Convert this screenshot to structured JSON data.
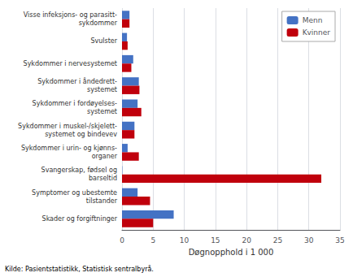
{
  "chart_data": {
    "type": "bar",
    "orientation": "horizontal",
    "categories": [
      "Visse infeksjons- og parasitt-\nsykdommer",
      "Svulster",
      "Sykdommer i nervesystemet",
      "Sykdommer i åndedrett-\nsystemet",
      "Sykdommer i fordøyelses-\nsystemet",
      "Sykdommer i muskel-/skjelett-\nsystemet og bindevev",
      "Sykdommer i urin- og kjønns-\norganer",
      "Svangerskap, fødsel og\nbarseltid",
      "Symptomer og ubestemte\ntilstander",
      "Skader og forgiftninger"
    ],
    "series": [
      {
        "name": "Menn",
        "color": "#4472C4",
        "values": [
          1.2,
          0.8,
          1.8,
          2.7,
          2.5,
          2.0,
          0.9,
          0.05,
          2.5,
          8.3
        ]
      },
      {
        "name": "Kvinner",
        "color": "#C0000C",
        "values": [
          1.2,
          0.9,
          1.5,
          2.8,
          3.1,
          2.0,
          2.7,
          32.0,
          4.5,
          5.0
        ]
      }
    ],
    "xlabel": "Døgnopphold i 1 000",
    "xlim": [
      0,
      35
    ],
    "xticks": [
      0,
      5,
      10,
      15,
      20,
      25,
      30,
      35
    ],
    "footnote": "Kilde: Pasientstatistikk, Statistisk sentralbyrå.",
    "grid": true,
    "legend": "upper right"
  }
}
